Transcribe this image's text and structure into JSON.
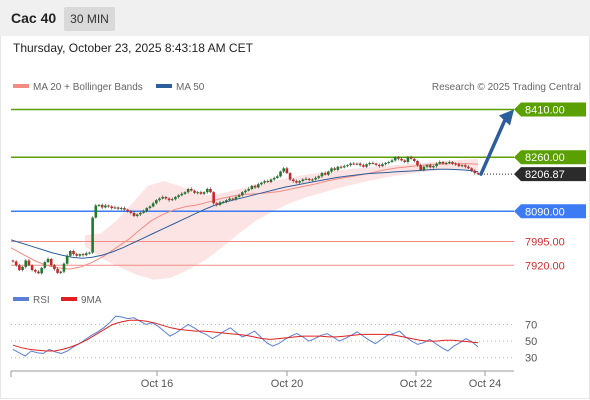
{
  "header": {
    "title": "Cac 40",
    "timeframe": "30 MIN"
  },
  "timestamp": "Thursday, October 23, 2025 8:43:18 AM CET",
  "legend": {
    "items": [
      {
        "label": "MA 20 + Bollinger Bands",
        "color": "#f28b82"
      },
      {
        "label": "MA 50",
        "color": "#2c5d9c"
      }
    ],
    "credit": "Research © 2025 Trading Central"
  },
  "rsi_legend": {
    "items": [
      {
        "label": "RSI",
        "color": "#5b7fd6"
      },
      {
        "label": "9MA",
        "color": "#e02020"
      }
    ]
  },
  "colors": {
    "resistance": "#5aa000",
    "pivot": "#3d7bf5",
    "support": "#f28b82",
    "arrow": "#2c5d9c",
    "candle_up": "#1f7a2e",
    "candle_down": "#c62828"
  },
  "chart_data": [
    {
      "type": "candlestick",
      "timeframe": "30 MIN",
      "x_ticks": [
        "Oct 16",
        "Oct 20",
        "Oct 22",
        "Oct 24"
      ],
      "ylim": [
        7880,
        8440
      ],
      "last_price": 8206.87,
      "levels": [
        {
          "value": 8410.0,
          "label": "8410.00",
          "kind": "resistance"
        },
        {
          "value": 8260.0,
          "label": "8260.00",
          "kind": "resistance"
        },
        {
          "value": 8090.0,
          "label": "8090.00",
          "kind": "pivot"
        },
        {
          "value": 7995.0,
          "label": "7995.00",
          "kind": "support"
        },
        {
          "value": 7920.0,
          "label": "7920.00",
          "kind": "support"
        }
      ],
      "projection": {
        "from": 8206.87,
        "to": 8410.0
      },
      "close_series": [
        7932,
        7920,
        7905,
        7915,
        7935,
        7920,
        7905,
        7900,
        7895,
        7912,
        7930,
        7940,
        7920,
        7908,
        7896,
        7900,
        7925,
        7950,
        7965,
        7955,
        7950,
        7955,
        7952,
        7958,
        7960,
        8070,
        8108,
        8110,
        8102,
        8108,
        8105,
        8100,
        8102,
        8098,
        8100,
        8095,
        8090,
        8085,
        8075,
        8080,
        8085,
        8090,
        8100,
        8105,
        8115,
        8125,
        8130,
        8135,
        8130,
        8125,
        8128,
        8135,
        8140,
        8145,
        8150,
        8160,
        8155,
        8148,
        8150,
        8145,
        8150,
        8160,
        8150,
        8115,
        8110,
        8118,
        8120,
        8125,
        8130,
        8128,
        8135,
        8140,
        8150,
        8155,
        8160,
        8170,
        8165,
        8175,
        8180,
        8185,
        8182,
        8190,
        8195,
        8200,
        8215,
        8225,
        8210,
        8190,
        8185,
        8180,
        8185,
        8190,
        8192,
        8188,
        8190,
        8195,
        8200,
        8210,
        8205,
        8215,
        8225,
        8220,
        8230,
        8228,
        8232,
        8235,
        8240,
        8238,
        8240,
        8235,
        8230,
        8238,
        8242,
        8240,
        8236,
        8232,
        8238,
        8242,
        8245,
        8250,
        8260,
        8255,
        8250,
        8245,
        8260,
        8255,
        8248,
        8235,
        8220,
        8230,
        8235,
        8228,
        8232,
        8240,
        8245,
        8240,
        8242,
        8245,
        8240,
        8238,
        8232,
        8235,
        8230,
        8225,
        8218,
        8210,
        8206.87
      ],
      "ma50_series": [
        8000,
        7990,
        7980,
        7970,
        7960,
        7952,
        7945,
        7942,
        7945,
        7952,
        7962,
        7975,
        7990,
        8005,
        8020,
        8035,
        8050,
        8065,
        8080,
        8095,
        8108,
        8118,
        8126,
        8134,
        8142,
        8150,
        8158,
        8166,
        8172,
        8178,
        8184,
        8190,
        8196,
        8200,
        8204,
        8208,
        8210,
        8212,
        8214,
        8216,
        8218,
        8220,
        8222,
        8222,
        8221,
        8219,
        8214
      ],
      "ma20_series": [
        7975,
        7955,
        7935,
        7920,
        7912,
        7908,
        7915,
        7930,
        7950,
        7975,
        8000,
        8030,
        8060,
        8080,
        8095,
        8105,
        8110,
        8120,
        8130,
        8138,
        8143,
        8145,
        8148,
        8152,
        8160,
        8168,
        8175,
        8185,
        8192,
        8198,
        8205,
        8212,
        8220,
        8226,
        8230,
        8234,
        8237,
        8239,
        8240,
        8240,
        8238
      ],
      "bollinger_upper": [
        8015,
        8020,
        8060,
        8115,
        8170,
        8185,
        8170,
        8148,
        8140,
        8150,
        8162,
        8175,
        8185,
        8195,
        8205,
        8212,
        8218,
        8224,
        8228,
        8232,
        8236,
        8240,
        8244,
        8248,
        8252,
        8255
      ],
      "bollinger_lower": [
        7980,
        7940,
        7915,
        7890,
        7875,
        7880,
        7905,
        7935,
        7975,
        8020,
        8060,
        8090,
        8115,
        8135,
        8150,
        8165,
        8178,
        8190,
        8200,
        8208,
        8215,
        8220,
        8222,
        8220
      ],
      "rsi": {
        "ylim": [
          20,
          85
        ],
        "ticks": [
          "70",
          "50",
          "30"
        ],
        "rsi_series": [
          40,
          36,
          32,
          38,
          36,
          35,
          40,
          37,
          35,
          38,
          43,
          47,
          52,
          57,
          61,
          66,
          72,
          80,
          79,
          77,
          78,
          74,
          70,
          72,
          68,
          62,
          56,
          60,
          65,
          70,
          66,
          61,
          58,
          53,
          57,
          62,
          66,
          60,
          55,
          58,
          62,
          55,
          48,
          44,
          47,
          52,
          56,
          59,
          55,
          50,
          53,
          57,
          59,
          55,
          50,
          53,
          57,
          61,
          56,
          51,
          47,
          52,
          57,
          59,
          62,
          55,
          50,
          46,
          48,
          52,
          47,
          42,
          38,
          44,
          48,
          53,
          49,
          43
        ],
        "ma9_series": [
          45,
          42,
          40,
          39,
          38,
          38,
          40,
          43,
          47,
          52,
          58,
          64,
          70,
          73,
          75,
          75,
          74,
          72,
          69,
          66,
          64,
          63,
          62,
          62,
          61,
          60,
          59,
          58,
          57,
          55,
          53,
          52,
          53,
          54,
          55,
          56,
          56,
          56,
          55,
          55,
          56,
          57,
          58,
          58,
          58,
          58,
          57,
          55,
          53,
          51,
          50,
          50,
          51,
          51,
          50,
          49,
          48
        ]
      }
    }
  ]
}
